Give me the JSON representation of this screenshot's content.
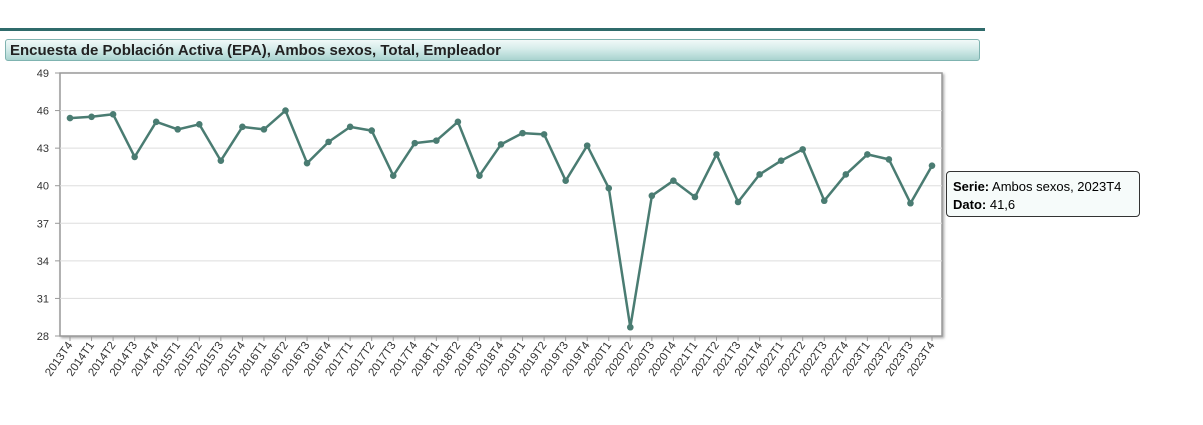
{
  "header": {
    "title": "Encuesta de Población Activa (EPA), Ambos sexos, Total, Empleador"
  },
  "tooltip": {
    "serie_label": "Serie:",
    "serie_value": "Ambos sexos, 2023T4",
    "dato_label": "Dato:",
    "dato_value": "41,6"
  },
  "colors": {
    "line": "#4a7c72",
    "accent": "#2f6b6b"
  },
  "chart_data": {
    "type": "line",
    "title": "Encuesta de Población Activa (EPA), Ambos sexos, Total, Empleador",
    "xlabel": "",
    "ylabel": "",
    "ylim": [
      28,
      49
    ],
    "yticks": [
      28,
      31,
      34,
      37,
      40,
      43,
      46,
      49
    ],
    "grid": true,
    "legend": "none",
    "categories": [
      "2013T4",
      "2014T1",
      "2014T2",
      "2014T3",
      "2014T4",
      "2015T1",
      "2015T2",
      "2015T3",
      "2015T4",
      "2016T1",
      "2016T2",
      "2016T3",
      "2016T4",
      "2017T1",
      "2017T2",
      "2017T3",
      "2017T4",
      "2018T1",
      "2018T2",
      "2018T3",
      "2018T4",
      "2019T1",
      "2019T2",
      "2019T3",
      "2019T4",
      "2020T1",
      "2020T2",
      "2020T3",
      "2020T4",
      "2021T1",
      "2021T2",
      "2021T3",
      "2021T4",
      "2022T1",
      "2022T2",
      "2022T3",
      "2022T4",
      "2023T1",
      "2023T2",
      "2023T3",
      "2023T4"
    ],
    "series": [
      {
        "name": "Ambos sexos",
        "values": [
          45.4,
          45.5,
          45.7,
          42.3,
          45.1,
          44.5,
          44.9,
          42.0,
          44.7,
          44.5,
          46.0,
          41.8,
          43.5,
          44.7,
          44.4,
          40.8,
          43.4,
          43.6,
          45.1,
          40.8,
          43.3,
          44.2,
          44.1,
          40.4,
          43.2,
          39.8,
          28.7,
          39.2,
          40.4,
          39.1,
          42.5,
          38.7,
          40.9,
          42.0,
          42.9,
          38.8,
          40.9,
          42.5,
          42.1,
          38.6,
          41.6
        ]
      }
    ]
  }
}
